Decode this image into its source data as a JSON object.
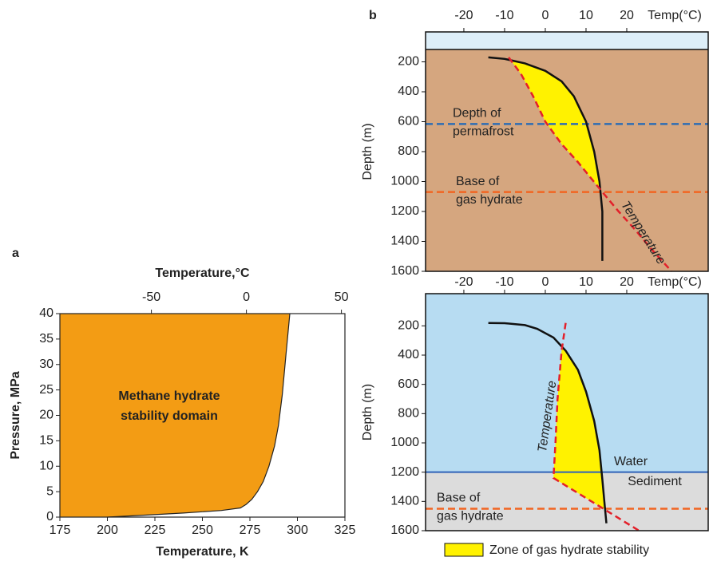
{
  "chart_data": [
    {
      "type": "area",
      "panel_label": "a",
      "x_label": "Temperature, K",
      "x2_label": "Temperature,°C",
      "y_label": "Pressure, MPa",
      "xlim": [
        175,
        325
      ],
      "xticks": [
        175,
        200,
        225,
        250,
        275,
        300,
        325
      ],
      "x2lim": [
        -98.15,
        51.85
      ],
      "x2ticks": [
        -50,
        0,
        50
      ],
      "ylim": [
        0,
        40
      ],
      "yticks": [
        0,
        5,
        10,
        15,
        20,
        25,
        30,
        35,
        40
      ],
      "annotation": [
        "Methane hydrate",
        "stability domain"
      ],
      "series": [
        {
          "color": "#f39c14",
          "x": [
            200,
            220,
            240,
            260,
            270,
            273,
            276,
            279,
            282,
            285,
            288,
            290,
            292,
            294,
            296
          ],
          "values": [
            0,
            0.4,
            0.8,
            1.3,
            1.8,
            2.5,
            3.5,
            5,
            7,
            10,
            14,
            18,
            24,
            32,
            40
          ]
        }
      ]
    },
    {
      "type": "profile",
      "panel_label": "b",
      "y_inverted": true,
      "x_label": "Temp(°C)",
      "y_label": "Depth (m)",
      "xlim": [
        -29.4,
        40
      ],
      "xticks": [
        -20,
        -10,
        0,
        10,
        20
      ],
      "ylim": [
        0,
        1600
      ],
      "yticks": [
        200,
        400,
        600,
        800,
        1000,
        1200,
        1400,
        1600
      ],
      "background": "#d5a67f",
      "surface": "#ddeef8",
      "hlines": [
        {
          "label": [
            "Depth of",
            "permafrost"
          ],
          "value": 615,
          "color": "#2e6db4"
        },
        {
          "label": [
            "Base of",
            "gas hydrate"
          ],
          "value": 1070,
          "color": "#f26522"
        }
      ],
      "series": [
        {
          "color": "#111111",
          "x": [
            -14,
            -10,
            -5,
            0,
            4,
            7,
            10,
            12,
            13.3,
            14,
            14,
            14
          ],
          "values": [
            170,
            180,
            210,
            260,
            330,
            430,
            600,
            800,
            1000,
            1200,
            1400,
            1530
          ]
        },
        {
          "name": "Temperature",
          "color": "#e3202a",
          "x": [
            -9,
            -6,
            -3,
            0,
            4,
            8,
            11,
            14,
            18,
            22,
            26,
            31
          ],
          "values": [
            170,
            280,
            430,
            600,
            750,
            870,
            970,
            1070,
            1200,
            1320,
            1450,
            1600
          ]
        }
      ]
    },
    {
      "type": "profile",
      "y_inverted": true,
      "x_label": "Temp(°C)",
      "y_label": "Depth (m)",
      "xlim": [
        -29.4,
        40
      ],
      "xticks": [
        -20,
        -10,
        0,
        10,
        20
      ],
      "ylim": [
        -20,
        1600
      ],
      "yticks": [
        200,
        400,
        600,
        800,
        1000,
        1200,
        1400,
        1600
      ],
      "layers": [
        {
          "label": "Water",
          "color": "#b7dcf2"
        },
        {
          "label": "Sediment",
          "color": "#dcdcdc"
        }
      ],
      "interface": {
        "value": 1200,
        "color": "#2f62b8"
      },
      "hlines": [
        {
          "label": [
            "Base of",
            "gas hydrate"
          ],
          "value": 1450,
          "color": "#f26522"
        }
      ],
      "series": [
        {
          "color": "#111111",
          "x": [
            -14,
            -10,
            -5,
            -2,
            2,
            5,
            8,
            10,
            12,
            13.3,
            14,
            14.5,
            15
          ],
          "values": [
            180,
            182,
            195,
            220,
            280,
            370,
            500,
            650,
            850,
            1050,
            1250,
            1400,
            1550
          ]
        },
        {
          "name": "Temperature",
          "color": "#e3202a",
          "x": [
            5,
            4,
            3,
            2.5,
            2,
            23
          ],
          "values": [
            180,
            370,
            700,
            1000,
            1240,
            1600
          ]
        }
      ],
      "legend": {
        "label": "Zone of gas hydrate stability",
        "color": "#fff200"
      }
    }
  ]
}
